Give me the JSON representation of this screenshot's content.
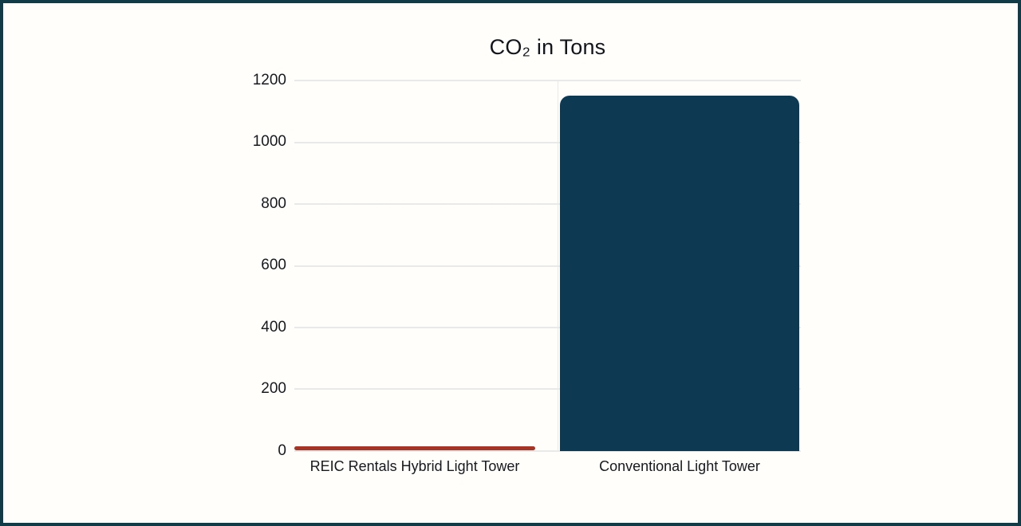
{
  "chart_data": {
    "type": "bar",
    "title": "CO₂ in Tons",
    "categories": [
      "REIC Rentals Hybrid Light Tower",
      "Conventional Light Tower"
    ],
    "values": [
      12,
      1150
    ],
    "bar_colors": [
      "#a83425",
      "#0d3a52"
    ],
    "xlabel": "",
    "ylabel": "",
    "ylim": [
      0,
      1200
    ],
    "yticks": [
      "1200",
      "1000",
      "800",
      "600",
      "400",
      "200",
      "0"
    ],
    "grid": "horizontal",
    "legend": "none"
  },
  "frame": {
    "border_color": "#113b47",
    "background_color": "#fffefb",
    "grid_color": "#e9e9e9",
    "text_color": "#16191d"
  }
}
